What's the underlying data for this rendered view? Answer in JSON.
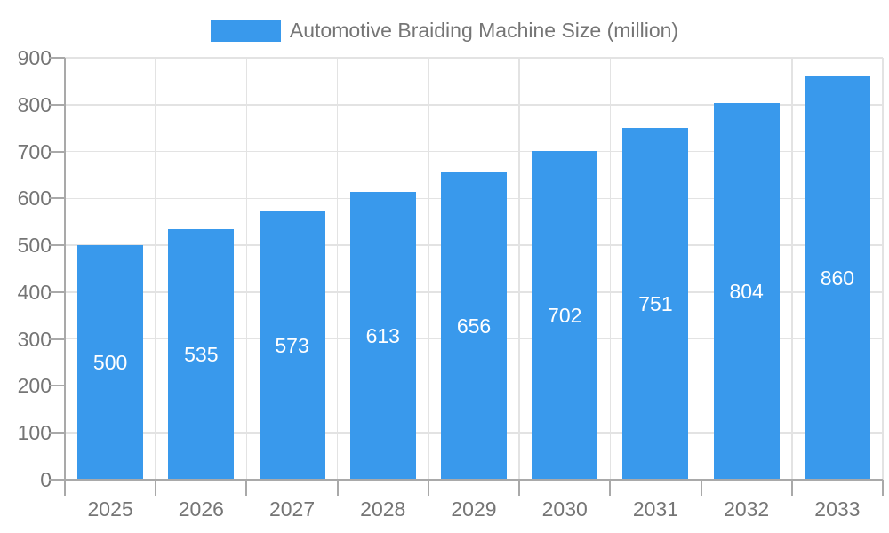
{
  "chart_data": {
    "type": "bar",
    "title": "Automotive Braiding Machine Size (million)",
    "legend": {
      "label": "Automotive Braiding Machine Size (million)",
      "position": "top"
    },
    "categories": [
      "2025",
      "2026",
      "2027",
      "2028",
      "2029",
      "2030",
      "2031",
      "2032",
      "2033"
    ],
    "values": [
      500,
      535,
      573,
      613,
      656,
      702,
      751,
      804,
      860
    ],
    "xlabel": "",
    "ylabel": "",
    "ylim": [
      0,
      900
    ],
    "y_ticks": [
      0,
      100,
      200,
      300,
      400,
      500,
      600,
      700,
      800,
      900
    ],
    "grid": true,
    "bar_label_position": "inside-center",
    "colors": {
      "bar": "#3999EC",
      "bar_label": "#FFFFFF",
      "axis_text": "#757575",
      "grid_line": "#E3E3E3",
      "axis_line": "#A9A9A9",
      "background": "#FFFFFF"
    }
  }
}
